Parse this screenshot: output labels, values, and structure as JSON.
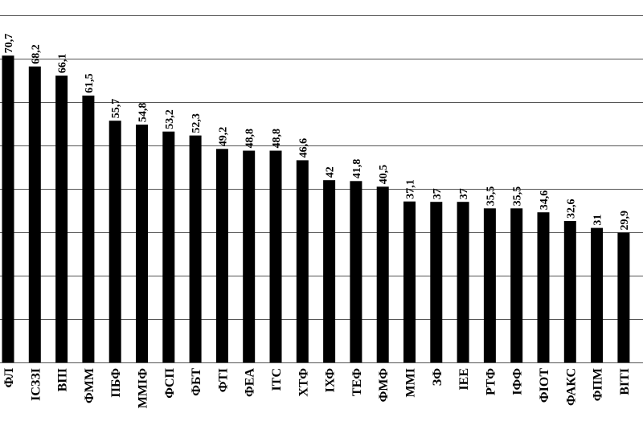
{
  "chart_data": {
    "type": "bar",
    "categories": [
      "ФЛ",
      "ІСЗЗІ",
      "ВПІ",
      "ФММ",
      "ПБФ",
      "ММІФ",
      "ФСП",
      "ФБТ",
      "ФТІ",
      "ФЕА",
      "ІТС",
      "ХТФ",
      "ІХФ",
      "ТЕФ",
      "ФМФ",
      "ММІ",
      "ЗФ",
      "ІЕЕ",
      "РТФ",
      "ІФФ",
      "ФІОТ",
      "ФАКС",
      "ФПМ",
      "ВІТІ"
    ],
    "values": [
      70.7,
      68.2,
      66.1,
      61.5,
      55.7,
      54.8,
      53.2,
      52.3,
      49.2,
      48.8,
      48.8,
      46.6,
      42,
      41.8,
      40.5,
      37.1,
      37,
      37,
      35.5,
      35.5,
      34.6,
      32.6,
      31,
      29.9
    ],
    "data_labels": [
      "70,7",
      "68,2",
      "66,1",
      "61,5",
      "55,7",
      "54,8",
      "53,2",
      "52,3",
      "49,2",
      "48,8",
      "48,8",
      "46,6",
      "42",
      "41,8",
      "40,5",
      "37,1",
      "37",
      "37",
      "35,5",
      "35,5",
      "34,6",
      "32,6",
      "31",
      "29,9"
    ],
    "ylim": [
      0,
      80
    ],
    "grid": true,
    "title": "",
    "xlabel": "",
    "ylabel": "",
    "colors": {
      "bar": "#000000",
      "grid": "#555555",
      "background": "#ffffff"
    }
  }
}
